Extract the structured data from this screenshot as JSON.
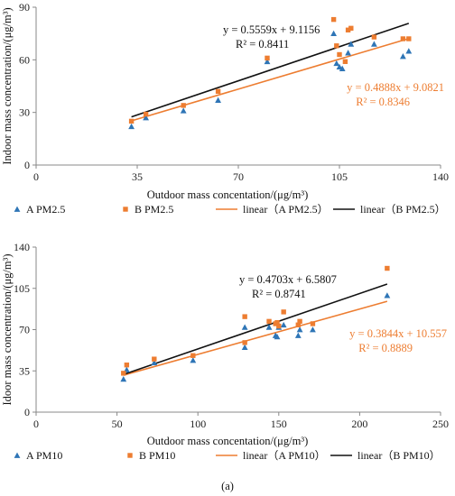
{
  "figure_label": "(a)",
  "chart_data": [
    {
      "type": "scatter",
      "xlabel": "Outdoor mass concentation/(μg/m³)",
      "ylabel": "Indoor mass concentration/(μg/m³)",
      "xlim": [
        0,
        140
      ],
      "ylim": [
        0,
        90
      ],
      "xticks": [
        "0",
        "35",
        "70",
        "105",
        "140"
      ],
      "yticks": [
        "0",
        "30",
        "60",
        "90"
      ],
      "grid": false,
      "legend_position": "bottom",
      "series": [
        {
          "name": "A PM2.5",
          "marker": "triangle",
          "color": "#2E75B6",
          "points": [
            [
              33,
              22
            ],
            [
              38,
              27
            ],
            [
              51,
              31
            ],
            [
              63,
              37
            ],
            [
              80,
              59
            ],
            [
              103,
              75
            ],
            [
              104,
              58
            ],
            [
              105,
              56
            ],
            [
              106,
              55
            ],
            [
              108,
              64
            ],
            [
              109,
              69
            ],
            [
              117,
              69
            ],
            [
              127,
              62
            ],
            [
              129,
              65
            ]
          ]
        },
        {
          "name": "B PM2.5",
          "marker": "square",
          "color": "#ED7D31",
          "points": [
            [
              33,
              25
            ],
            [
              38,
              29
            ],
            [
              51,
              34
            ],
            [
              63,
              42
            ],
            [
              80,
              61
            ],
            [
              103,
              83
            ],
            [
              104,
              68
            ],
            [
              105,
              63
            ],
            [
              107,
              59
            ],
            [
              108,
              77
            ],
            [
              109,
              78
            ],
            [
              117,
              73
            ],
            [
              127,
              72
            ],
            [
              129,
              72
            ]
          ]
        }
      ],
      "trendlines": [
        {
          "name": "linear（A PM2.5）",
          "color": "#ED7D31",
          "slope": 0.4888,
          "intercept": 9.0821,
          "x_range": [
            33,
            129
          ],
          "equation": "y = 0.4888x + 9.0821",
          "r2": "R² = 0.8346"
        },
        {
          "name": "linear（B PM2.5）",
          "color": "#111111",
          "slope": 0.5559,
          "intercept": 9.1156,
          "x_range": [
            33,
            129
          ],
          "equation": "y = 0.5559x + 9.1156",
          "r2": "R² = 0.8411"
        }
      ],
      "legend": [
        "A PM2.5",
        "B PM2.5",
        "linear（A PM2.5）",
        "linear（B PM2.5）"
      ]
    },
    {
      "type": "scatter",
      "xlabel": "Outdoor mass concentation/(μg/m³)",
      "ylabel": "Idoor mass concentration/(μg/m³)",
      "xlim": [
        0,
        250
      ],
      "ylim": [
        0,
        140
      ],
      "xticks": [
        "0",
        "50",
        "100",
        "150",
        "200",
        "250"
      ],
      "yticks": [
        "0",
        "35",
        "70",
        "105",
        "140"
      ],
      "grid": false,
      "legend_position": "bottom",
      "series": [
        {
          "name": "A PM10",
          "marker": "triangle",
          "color": "#2E75B6",
          "points": [
            [
              54,
              28
            ],
            [
              56,
              36
            ],
            [
              73,
              42
            ],
            [
              97,
              44
            ],
            [
              129,
              55
            ],
            [
              129,
              72
            ],
            [
              144,
              72
            ],
            [
              148,
              65
            ],
            [
              149,
              64
            ],
            [
              150,
              72
            ],
            [
              153,
              74
            ],
            [
              162,
              65
            ],
            [
              163,
              70
            ],
            [
              171,
              70
            ],
            [
              217,
              99
            ]
          ]
        },
        {
          "name": "B PM10",
          "marker": "square",
          "color": "#ED7D31",
          "points": [
            [
              54,
              33
            ],
            [
              56,
              40
            ],
            [
              73,
              45
            ],
            [
              97,
              48
            ],
            [
              129,
              59
            ],
            [
              129,
              81
            ],
            [
              144,
              77
            ],
            [
              148,
              75
            ],
            [
              149,
              76
            ],
            [
              150,
              73
            ],
            [
              153,
              85
            ],
            [
              162,
              74
            ],
            [
              163,
              77
            ],
            [
              171,
              75
            ],
            [
              217,
              122
            ]
          ]
        }
      ],
      "trendlines": [
        {
          "name": "linear（A PM10）",
          "color": "#ED7D31",
          "slope": 0.3844,
          "intercept": 10.557,
          "x_range": [
            54,
            217
          ],
          "equation": "y = 0.3844x + 10.557",
          "r2": "R² = 0.8889"
        },
        {
          "name": "linear（B PM10）",
          "color": "#111111",
          "slope": 0.4703,
          "intercept": 6.5807,
          "x_range": [
            54,
            217
          ],
          "equation": "y = 0.4703x + 6.5807",
          "r2": "R² = 0.8741"
        }
      ],
      "legend": [
        "A PM10",
        "B PM10",
        "linear（A PM10）",
        "linear（B PM10）"
      ]
    }
  ]
}
